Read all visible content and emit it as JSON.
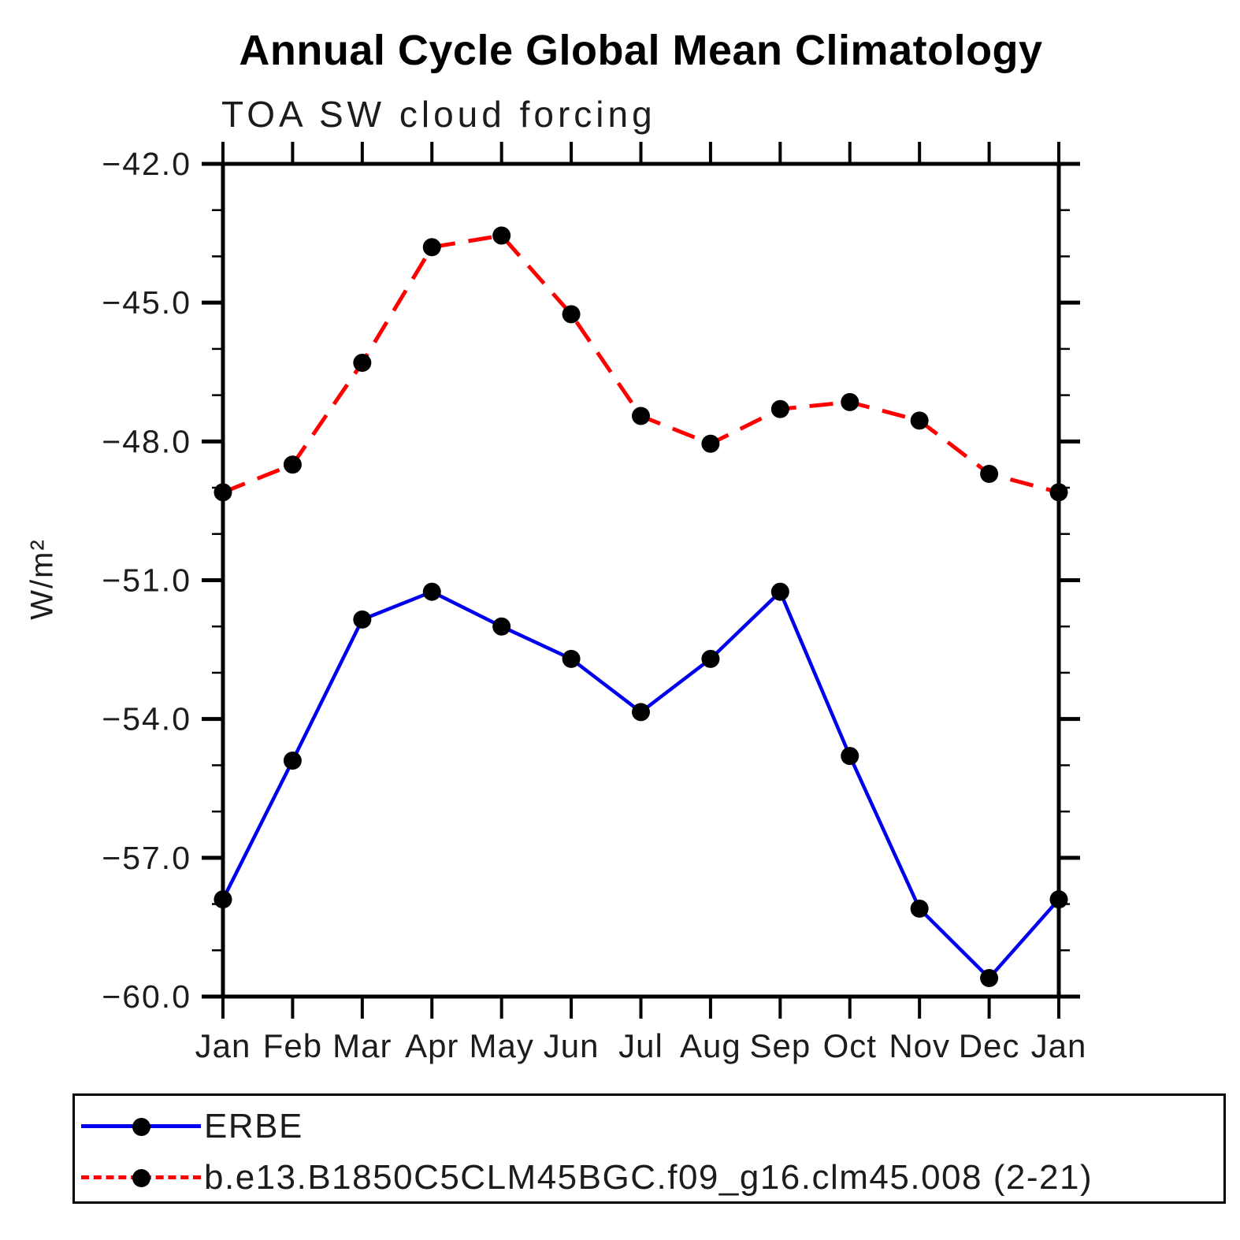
{
  "page": {
    "background": "#ffffff"
  },
  "chart_data": {
    "type": "line",
    "title": "Annual Cycle Global Mean Climatology",
    "subtitle": "TOA SW cloud forcing",
    "ylabel": "W/m²",
    "xlabel": "",
    "x_categories": [
      "Jan",
      "Feb",
      "Mar",
      "Apr",
      "May",
      "Jun",
      "Jul",
      "Aug",
      "Sep",
      "Oct",
      "Nov",
      "Dec",
      "Jan"
    ],
    "ylim": [
      -60.0,
      -42.0
    ],
    "y_major_ticks": [
      -42.0,
      -45.0,
      -48.0,
      -51.0,
      -54.0,
      -57.0,
      -60.0
    ],
    "y_minor_step": 1.0,
    "y_tick_decimals": 1,
    "grid": false,
    "legend_position": "bottom-left",
    "series": [
      {
        "name": "ERBE",
        "color": "#0000EE",
        "line_style": "solid",
        "marker": "circle",
        "marker_color": "#000000",
        "values": [
          -57.9,
          -54.9,
          -51.85,
          -51.25,
          -52.0,
          -52.7,
          -53.85,
          -52.7,
          -51.25,
          -54.8,
          -58.1,
          -59.6,
          -57.9
        ]
      },
      {
        "name": "b.e13.B1850C5CLM45BGC.f09_g16.clm45.008 (2-21)",
        "color": "#FF0000",
        "line_style": "dashed",
        "marker": "circle",
        "marker_color": "#000000",
        "values": [
          -49.1,
          -48.5,
          -46.3,
          -43.8,
          -43.55,
          -45.25,
          -47.45,
          -48.05,
          -47.3,
          -47.15,
          -47.55,
          -48.7,
          -49.1
        ]
      }
    ]
  }
}
